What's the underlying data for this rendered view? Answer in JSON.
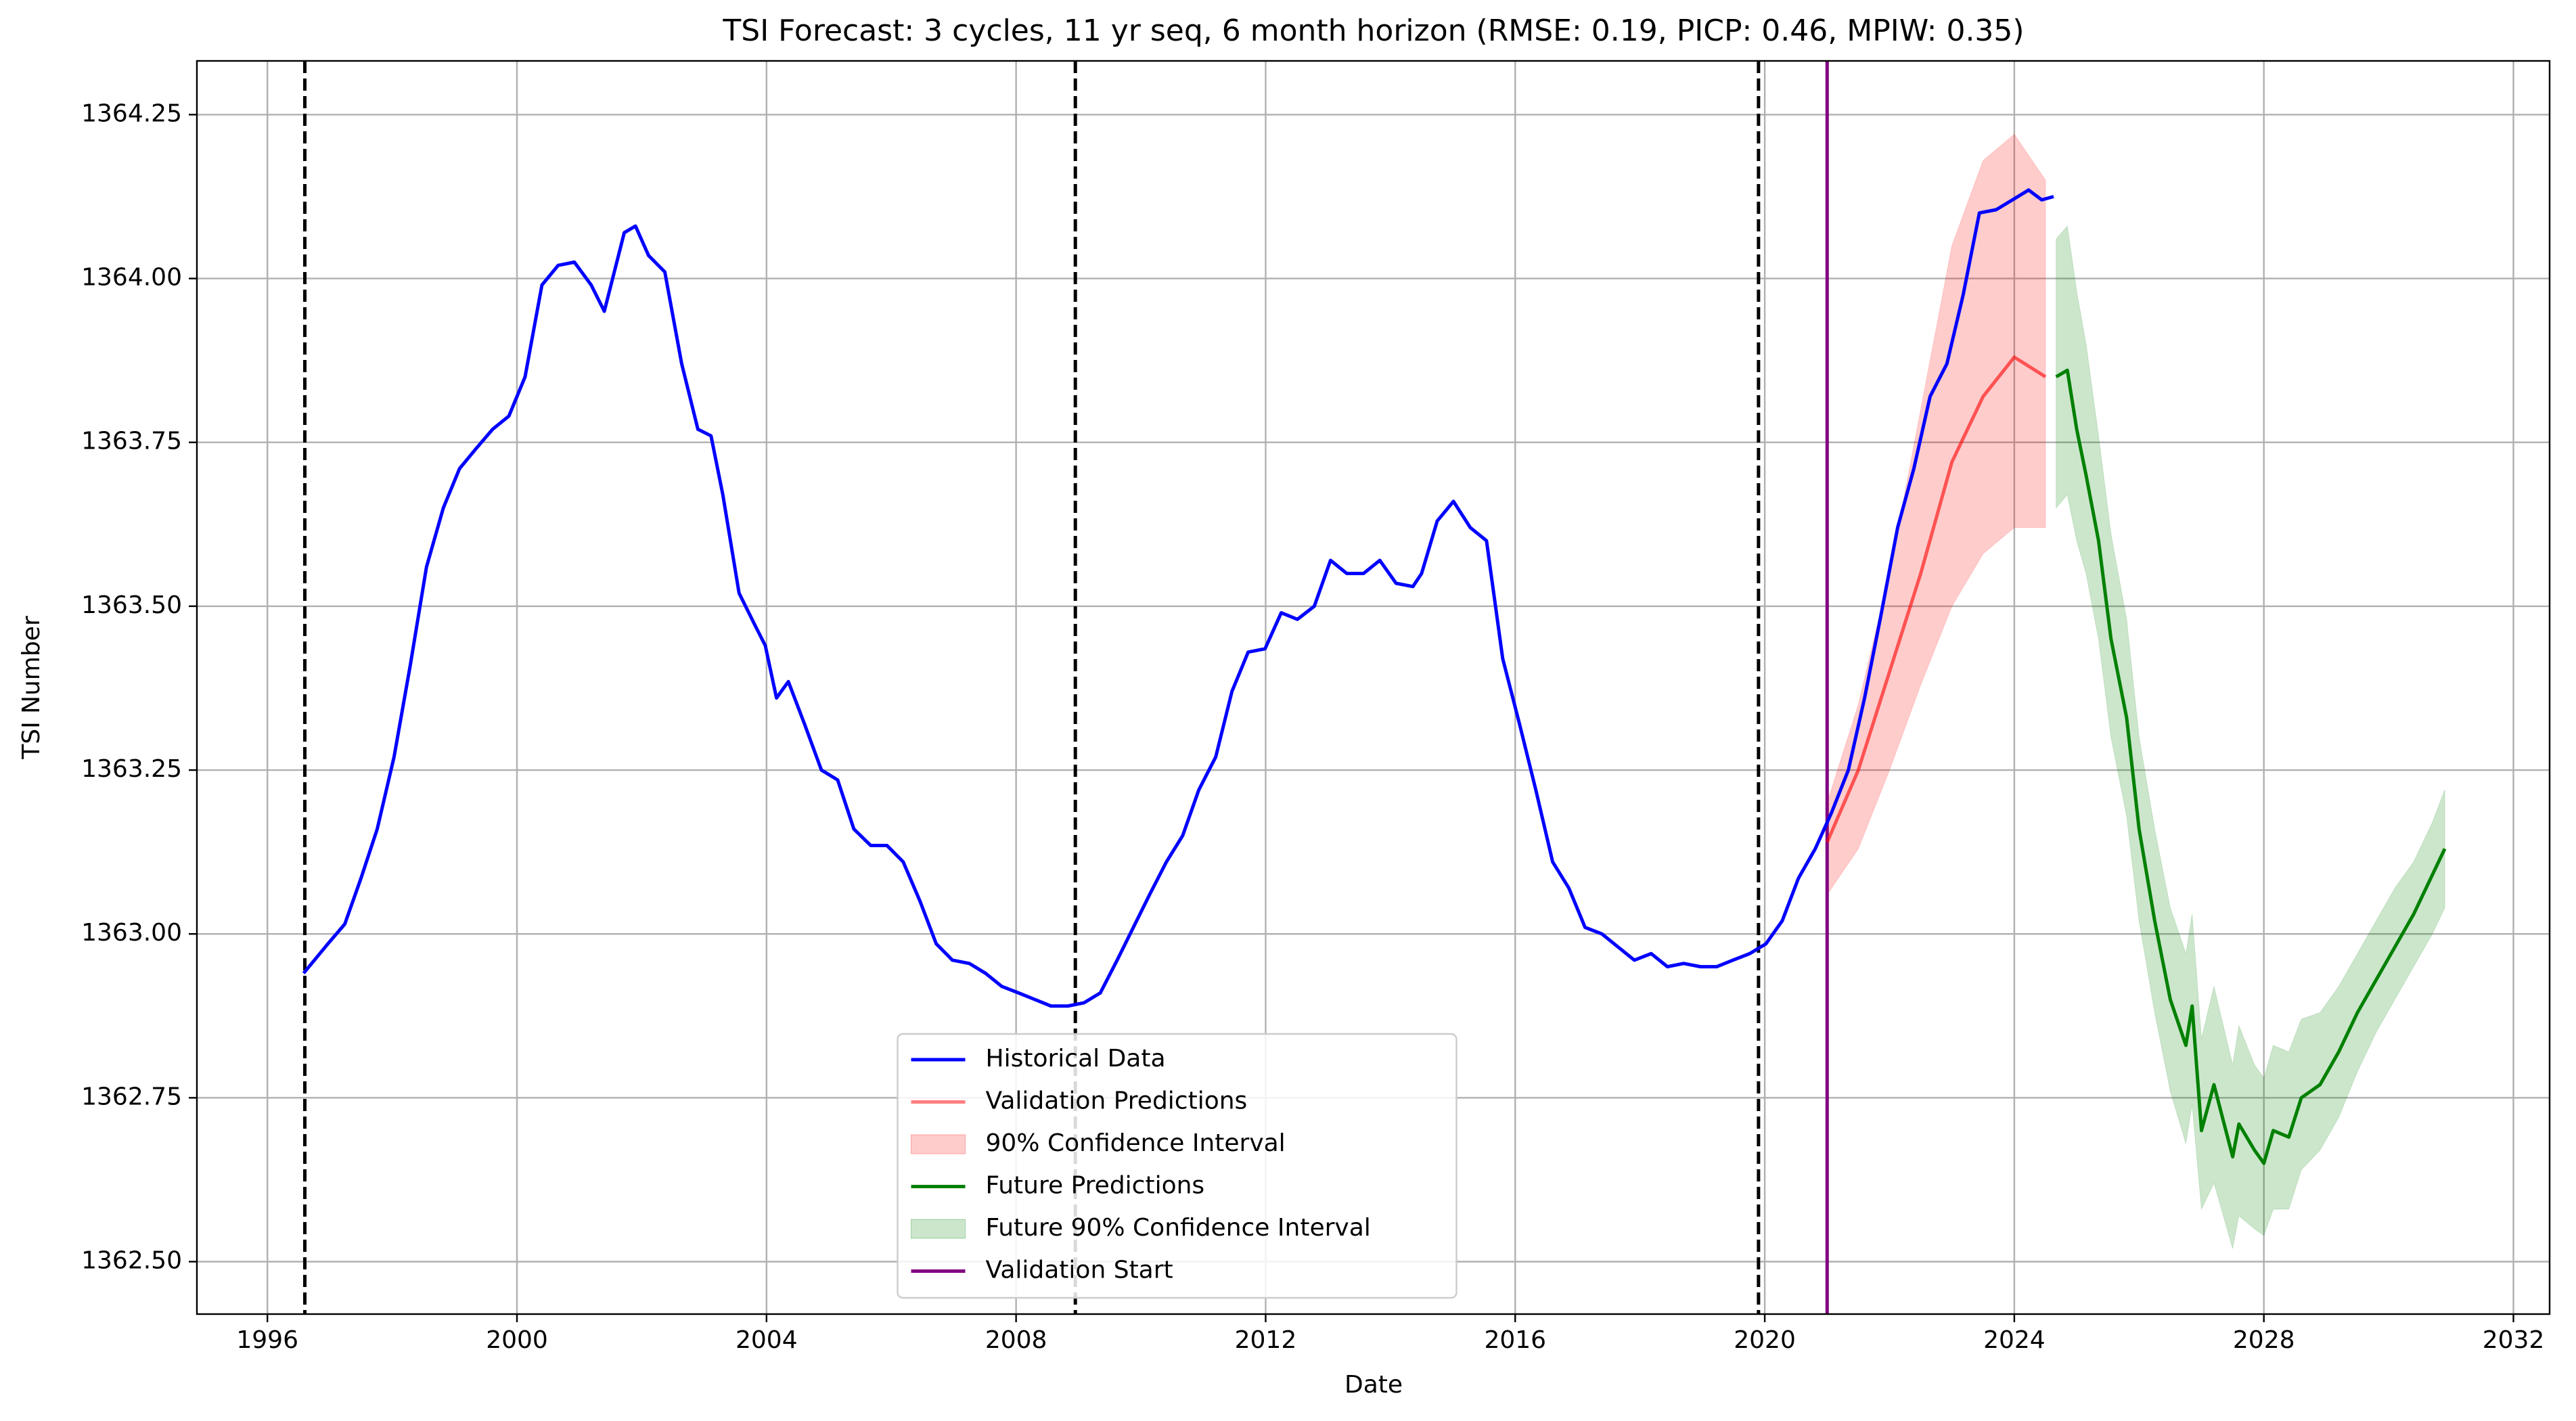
{
  "chart_data": {
    "type": "line",
    "title": "TSI Forecast: 3 cycles, 11 yr seq, 6 month horizon (RMSE: 0.19, PICP: 0.46, MPIW: 0.35)",
    "x_label": "Date",
    "y_label": "TSI Number",
    "xlim": [
      1994.87,
      2032.58
    ],
    "ylim": [
      1362.42,
      1364.332
    ],
    "xticks": [
      1996,
      2000,
      2004,
      2008,
      2012,
      2016,
      2020,
      2024,
      2028,
      2032
    ],
    "yticks": [
      {
        "value": 1362.5,
        "label": "1362.50"
      },
      {
        "value": 1362.75,
        "label": "1362.75"
      },
      {
        "value": 1363.0,
        "label": "1363.00"
      },
      {
        "value": 1363.25,
        "label": "1363.25"
      },
      {
        "value": 1363.5,
        "label": "1363.50"
      },
      {
        "value": 1363.75,
        "label": "1363.75"
      },
      {
        "value": 1364.0,
        "label": "1364.00"
      },
      {
        "value": 1364.25,
        "label": "1364.25"
      }
    ],
    "grid": true,
    "legend": "lower center",
    "series": [
      {
        "name": "Historical Data",
        "color": "#0000ff",
        "x": [
          1996.58,
          1996.97,
          1997.24,
          1997.5,
          1997.76,
          1998.03,
          1998.29,
          1998.55,
          1998.82,
          1999.08,
          1999.34,
          1999.61,
          1999.87,
          2000.13,
          2000.4,
          2000.66,
          2000.92,
          2001.19,
          2001.4,
          2001.72,
          2001.9,
          2002.11,
          2002.37,
          2002.64,
          2002.9,
          2003.11,
          2003.3,
          2003.56,
          2003.82,
          2003.98,
          2004.16,
          2004.35,
          2004.61,
          2004.88,
          2005.14,
          2005.4,
          2005.67,
          2005.93,
          2006.19,
          2006.46,
          2006.72,
          2006.98,
          2007.25,
          2007.51,
          2007.77,
          2008.04,
          2008.3,
          2008.56,
          2008.83,
          2009.09,
          2009.35,
          2009.62,
          2009.88,
          2010.14,
          2010.41,
          2010.67,
          2010.93,
          2011.2,
          2011.46,
          2011.72,
          2011.99,
          2012.25,
          2012.51,
          2012.78,
          2013.04,
          2013.3,
          2013.57,
          2013.83,
          2014.09,
          2014.36,
          2014.5,
          2014.75,
          2015.01,
          2015.28,
          2015.54,
          2015.8,
          2016.07,
          2016.33,
          2016.6,
          2016.86,
          2017.12,
          2017.39,
          2017.65,
          2017.91,
          2018.18,
          2018.44,
          2018.7,
          2018.97,
          2019.23,
          2019.49,
          2019.76,
          2020.02,
          2020.28,
          2020.54,
          2020.81,
          2021.07,
          2021.34,
          2021.6,
          2021.86,
          2022.13,
          2022.39,
          2022.65,
          2022.92,
          2023.18,
          2023.44,
          2023.71,
          2023.97,
          2024.23,
          2024.44,
          2024.63
        ],
        "values": [
          1362.94,
          1362.985,
          1363.015,
          1363.085,
          1363.16,
          1363.27,
          1363.41,
          1363.56,
          1363.65,
          1363.71,
          1363.74,
          1363.77,
          1363.79,
          1363.85,
          1363.99,
          1364.02,
          1364.025,
          1363.99,
          1363.95,
          1364.07,
          1364.08,
          1364.035,
          1364.01,
          1363.87,
          1363.77,
          1363.76,
          1363.67,
          1363.52,
          1363.47,
          1363.44,
          1363.36,
          1363.385,
          1363.32,
          1363.25,
          1363.235,
          1363.16,
          1363.135,
          1363.135,
          1363.11,
          1363.05,
          1362.985,
          1362.96,
          1362.955,
          1362.94,
          1362.92,
          1362.91,
          1362.9,
          1362.89,
          1362.89,
          1362.895,
          1362.91,
          1362.96,
          1363.01,
          1363.06,
          1363.11,
          1363.15,
          1363.22,
          1363.27,
          1363.37,
          1363.43,
          1363.435,
          1363.49,
          1363.48,
          1363.5,
          1363.57,
          1363.55,
          1363.55,
          1363.57,
          1363.535,
          1363.53,
          1363.55,
          1363.63,
          1363.66,
          1363.62,
          1363.6,
          1363.42,
          1363.32,
          1363.22,
          1363.11,
          1363.07,
          1363.01,
          1363.0,
          1362.98,
          1362.96,
          1362.97,
          1362.95,
          1362.955,
          1362.95,
          1362.95,
          1362.96,
          1362.97,
          1362.985,
          1363.02,
          1363.085,
          1363.13,
          1363.185,
          1363.25,
          1363.36,
          1363.485,
          1363.62,
          1363.71,
          1363.82,
          1363.87,
          1363.975,
          1364.1,
          1364.105,
          1364.12,
          1364.135,
          1364.12,
          1364.125
        ]
      },
      {
        "name": "Validation Predictions",
        "color": "#ff0000",
        "x": [
          2021.0,
          2021.5,
          2022.0,
          2022.5,
          2023.0,
          2023.5,
          2024.0,
          2024.5
        ],
        "values": [
          1363.14,
          1363.25,
          1363.4,
          1363.55,
          1363.72,
          1363.82,
          1363.88,
          1363.85
        ]
      },
      {
        "name": "Future Predictions",
        "color": "#008000",
        "x": [
          2024.67,
          2024.85,
          2025.0,
          2025.15,
          2025.35,
          2025.55,
          2025.8,
          2026.0,
          2026.25,
          2026.5,
          2026.75,
          2026.85,
          2027.0,
          2027.2,
          2027.5,
          2027.6,
          2027.85,
          2028.0,
          2028.15,
          2028.4,
          2028.6,
          2028.9,
          2029.2,
          2029.5,
          2029.8,
          2030.1,
          2030.4,
          2030.7,
          2030.9
        ],
        "values": [
          1363.85,
          1363.86,
          1363.77,
          1363.7,
          1363.6,
          1363.45,
          1363.33,
          1363.16,
          1363.02,
          1362.9,
          1362.83,
          1362.89,
          1362.7,
          1362.77,
          1362.66,
          1362.71,
          1362.67,
          1362.65,
          1362.7,
          1362.69,
          1362.75,
          1362.77,
          1362.82,
          1362.88,
          1362.93,
          1362.98,
          1363.03,
          1363.09,
          1363.13
        ]
      }
    ],
    "bands": [
      {
        "name": "90% Confidence Interval",
        "color": "#ff0000",
        "x": [
          2021.0,
          2021.5,
          2022.0,
          2022.5,
          2023.0,
          2023.5,
          2024.0,
          2024.5
        ],
        "lower": [
          1363.06,
          1363.13,
          1363.25,
          1363.38,
          1363.5,
          1363.58,
          1363.62,
          1363.62
        ],
        "upper": [
          1363.2,
          1363.35,
          1363.55,
          1363.8,
          1364.05,
          1364.18,
          1364.22,
          1364.15
        ]
      },
      {
        "name": "Future 90% Confidence Interval",
        "color": "#008000",
        "x": [
          2024.67,
          2024.85,
          2025.0,
          2025.15,
          2025.35,
          2025.55,
          2025.8,
          2026.0,
          2026.25,
          2026.5,
          2026.75,
          2026.85,
          2027.0,
          2027.2,
          2027.5,
          2027.6,
          2027.85,
          2028.0,
          2028.15,
          2028.4,
          2028.6,
          2028.9,
          2029.2,
          2029.5,
          2029.8,
          2030.1,
          2030.4,
          2030.7,
          2030.9
        ],
        "lower": [
          1363.65,
          1363.67,
          1363.6,
          1363.55,
          1363.45,
          1363.3,
          1363.18,
          1363.02,
          1362.88,
          1362.76,
          1362.68,
          1362.74,
          1362.58,
          1362.62,
          1362.52,
          1362.57,
          1362.55,
          1362.54,
          1362.58,
          1362.58,
          1362.64,
          1362.67,
          1362.72,
          1362.79,
          1362.85,
          1362.9,
          1362.95,
          1363.0,
          1363.04
        ],
        "upper": [
          1364.06,
          1364.08,
          1363.98,
          1363.9,
          1363.76,
          1363.61,
          1363.48,
          1363.3,
          1363.16,
          1363.04,
          1362.97,
          1363.03,
          1362.84,
          1362.92,
          1362.8,
          1362.86,
          1362.8,
          1362.78,
          1362.83,
          1362.82,
          1362.87,
          1362.88,
          1362.92,
          1362.97,
          1363.02,
          1363.07,
          1363.11,
          1363.17,
          1363.22
        ]
      }
    ],
    "cycle_lines": [
      1996.6,
      2008.95,
      2019.9
    ],
    "validation_start": {
      "name": "Validation Start",
      "x": 2021.0,
      "color": "#800080"
    }
  }
}
